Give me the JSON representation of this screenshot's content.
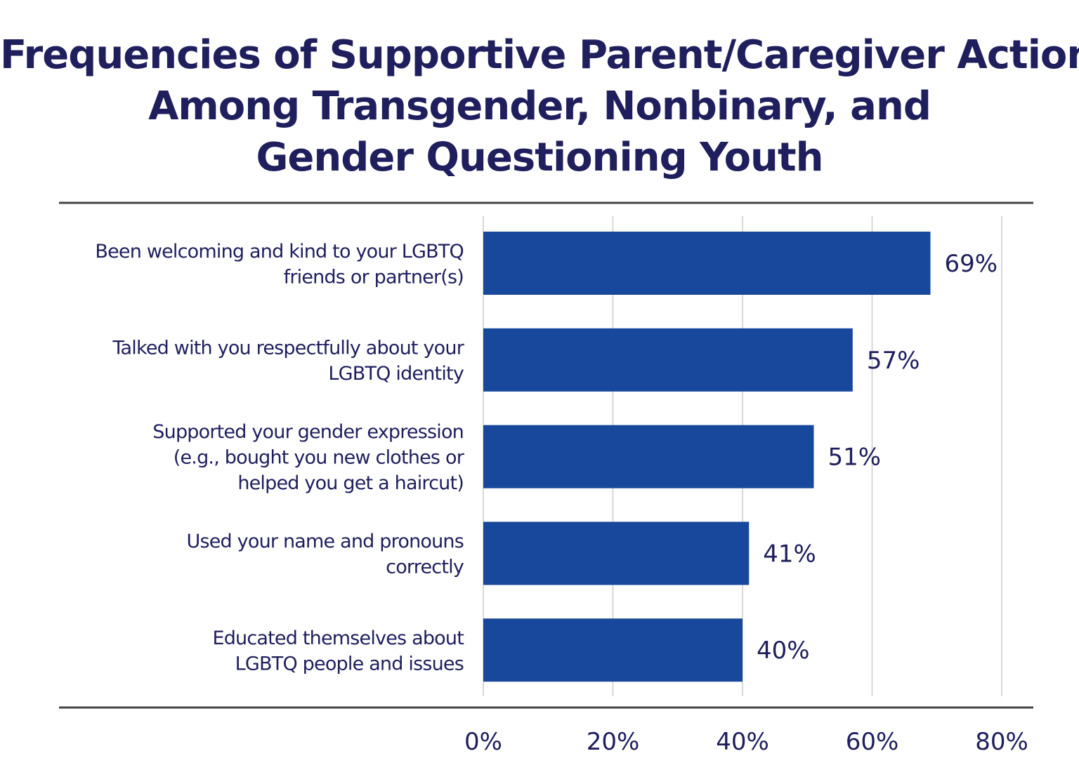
{
  "chart_data": {
    "type": "bar",
    "orientation": "horizontal",
    "title": [
      "Frequencies of Supportive Parent/Caregiver Actions",
      "Among Transgender, Nonbinary, and",
      "Gender Questioning Youth"
    ],
    "categories": [
      [
        "Been welcoming and kind to your LGBTQ",
        "friends or partner(s)"
      ],
      [
        "Talked with you respectfully about your",
        "LGBTQ identity"
      ],
      [
        "Supported your gender expression",
        "(e.g., bought you new clothes or",
        "helped you get a haircut)"
      ],
      [
        "Used your name and pronouns",
        "correctly"
      ],
      [
        "Educated themselves about",
        "LGBTQ people and issues"
      ]
    ],
    "values": [
      69,
      57,
      51,
      41,
      40
    ],
    "data_labels": [
      "69%",
      "57%",
      "51%",
      "41%",
      "40%"
    ],
    "xlim": [
      0,
      80
    ],
    "x_ticks": [
      0,
      20,
      40,
      60,
      80
    ],
    "x_tick_labels": [
      "0%",
      "20%",
      "40%",
      "60%",
      "80%"
    ],
    "xlabel": "",
    "ylabel": "",
    "grid": "vertical",
    "legend": "none",
    "colors": {
      "bar": "#17489b",
      "text": "#1e1e5e",
      "grid": "#cccccc",
      "rule": "#444444"
    }
  }
}
